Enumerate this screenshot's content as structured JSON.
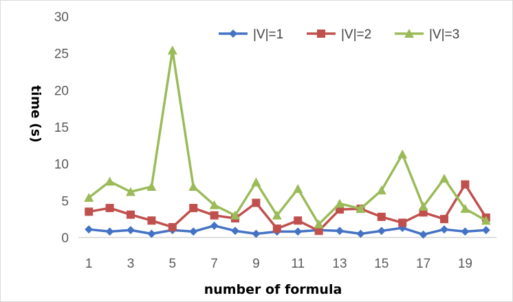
{
  "chart_data": {
    "type": "line",
    "title": "",
    "xlabel": "number of formula",
    "ylabel": "time (s)",
    "ylim": [
      0,
      30
    ],
    "y_ticks": [
      "0",
      "5",
      "10",
      "15",
      "20",
      "25",
      "30"
    ],
    "x_tick_labels": [
      "1",
      "3",
      "5",
      "7",
      "9",
      "11",
      "13",
      "15",
      "17",
      "19"
    ],
    "grid": false,
    "legend_position": "top-right",
    "x": [
      1,
      2,
      3,
      4,
      5,
      6,
      7,
      8,
      9,
      10,
      11,
      12,
      13,
      14,
      15,
      16,
      17,
      18,
      19,
      20
    ],
    "series": [
      {
        "name": "|V|=1",
        "color": "#4472c4",
        "marker": "diamond",
        "values": [
          1.1,
          0.8,
          1.0,
          0.5,
          1.0,
          0.8,
          1.6,
          0.9,
          0.5,
          0.8,
          0.8,
          1.0,
          0.9,
          0.5,
          0.9,
          1.3,
          0.4,
          1.1,
          0.8,
          1.0
        ]
      },
      {
        "name": "|V|=2",
        "color": "#c0504d",
        "marker": "square",
        "values": [
          3.5,
          4.0,
          3.1,
          2.3,
          1.4,
          4.0,
          3.0,
          2.6,
          4.7,
          1.2,
          2.3,
          0.9,
          3.8,
          3.9,
          2.8,
          2.0,
          3.4,
          2.5,
          7.2,
          2.7
        ]
      },
      {
        "name": "|V|=3",
        "color": "#9bbb59",
        "marker": "triangle",
        "values": [
          5.4,
          7.6,
          6.2,
          6.9,
          25.4,
          6.9,
          4.4,
          3.0,
          7.5,
          3.0,
          6.6,
          1.8,
          4.6,
          3.9,
          6.4,
          11.3,
          4.2,
          8.0,
          3.9,
          2.3
        ]
      }
    ]
  }
}
